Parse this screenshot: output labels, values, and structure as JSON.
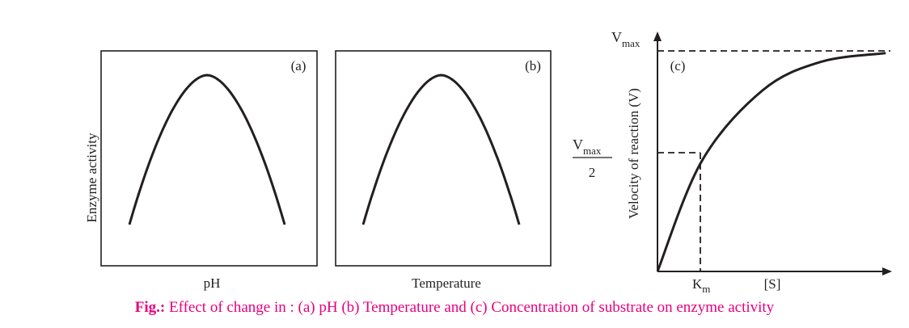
{
  "caption": {
    "prefix": "Fig.:",
    "text": " Effect of change in : (a) pH (b) Temperature and (c) Concentration of substrate on enzyme activity"
  },
  "colors": {
    "caption": "#e6007e",
    "ink": "#231f20"
  },
  "chart_data": [
    {
      "type": "line",
      "panel_label": "(a)",
      "xlabel": "pH",
      "ylabel": "Enzyme activity",
      "shape": "inverted-parabola",
      "series": [
        {
          "x": [
            0,
            0.25,
            0.5,
            0.75,
            1
          ],
          "y": [
            0.06,
            0.72,
            1.0,
            0.72,
            0.06
          ]
        }
      ]
    },
    {
      "type": "line",
      "panel_label": "(b)",
      "xlabel": "Temperature",
      "ylabel": "",
      "shape": "inverted-parabola",
      "series": [
        {
          "x": [
            0,
            0.25,
            0.5,
            0.75,
            1
          ],
          "y": [
            0.06,
            0.72,
            1.0,
            0.72,
            0.06
          ]
        }
      ]
    },
    {
      "type": "line",
      "panel_label": "(c)",
      "xlabel": "[S]",
      "ylabel": "Velocity of reaction (V)",
      "shape": "saturation",
      "y_ticks": {
        "vmax_main": "V",
        "vmax_sub": "max",
        "half_num_main": "V",
        "half_num_sub": "max",
        "half_den": "2"
      },
      "x_ticks": {
        "km_main": "K",
        "km_sub": "m"
      },
      "series": [
        {
          "x": [
            0,
            0.19,
            0.45,
            0.7,
            0.98
          ],
          "y": [
            0,
            0.5,
            0.82,
            0.95,
            0.99
          ]
        }
      ]
    }
  ]
}
